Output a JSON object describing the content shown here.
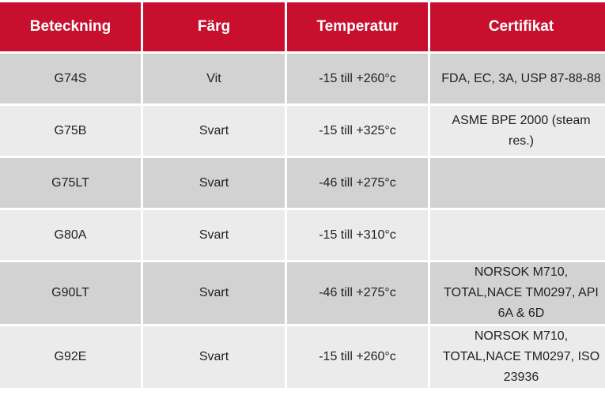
{
  "table": {
    "header": [
      "Beteckning",
      "Färg",
      "Temperatur",
      "Certifikat"
    ],
    "rows": [
      [
        "G74S",
        "Vit",
        "-15 till +260°c",
        "FDA, EC, 3A, USP 87-88-88"
      ],
      [
        "G75B",
        "Svart",
        "-15 till +325°c",
        "ASME BPE 2000 (steam res.)"
      ],
      [
        "G75LT",
        "Svart",
        "-46 till +275°c",
        null
      ],
      [
        "G80A",
        "Svart",
        "-15 till +310°c",
        null
      ],
      [
        "G90LT",
        "Svart",
        "-46 till +275°c",
        "NORSOK M710, TOTAL,NACE TM0297, API 6A & 6D"
      ],
      [
        "G92E",
        "Svart",
        "-15 till +260°c",
        "NORSOK M710, TOTAL,NACE TM0297, ISO 23936"
      ]
    ]
  }
}
